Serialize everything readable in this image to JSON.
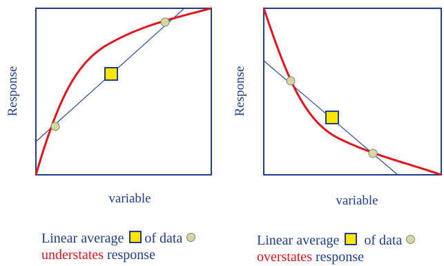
{
  "panels": [
    {
      "ylabel": "Response",
      "xlabel": "variable",
      "caption_line1": "Linear average",
      "caption_mid": "of data",
      "caption_red": "understates",
      "caption_end": "response"
    },
    {
      "ylabel": "Response",
      "xlabel": "variable",
      "caption_line1": "Linear average",
      "caption_mid": "of data",
      "caption_red": "overstates",
      "caption_end": "response"
    }
  ],
  "colors": {
    "frame": "#1f3d8a",
    "curve": "#e0151e",
    "line": "#2b4aa0",
    "average": "#ffe600",
    "dot": "#d8d4aa"
  }
}
